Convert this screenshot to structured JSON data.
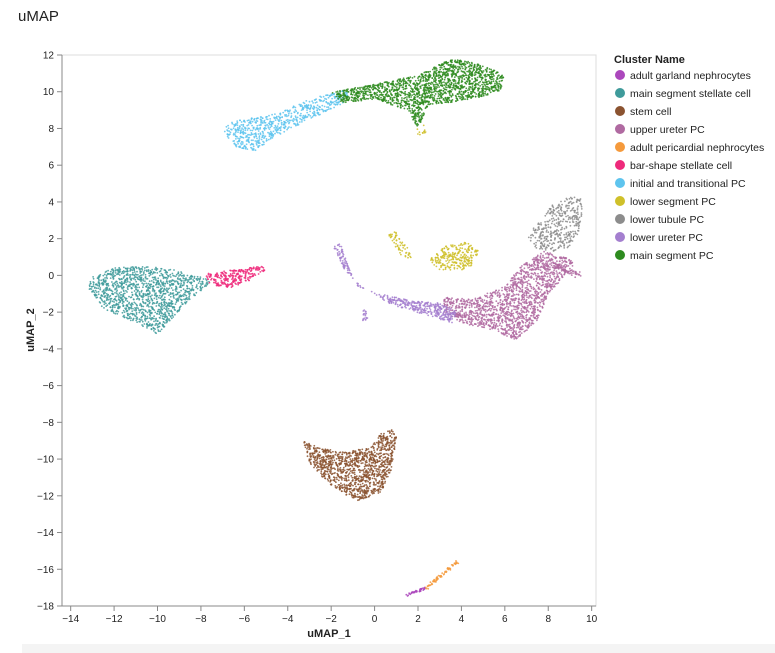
{
  "page": {
    "title": "uMAP"
  },
  "chart_data": {
    "type": "scatter",
    "title": "",
    "xlabel": "uMAP_1",
    "ylabel": "uMAP_2",
    "xlim": [
      -14.4,
      10.2
    ],
    "ylim": [
      -18,
      12
    ],
    "xticks": [
      -14,
      -12,
      -10,
      -8,
      -6,
      -4,
      -2,
      0,
      2,
      4,
      6,
      8,
      10
    ],
    "yticks": [
      -18,
      -16,
      -14,
      -12,
      -10,
      -8,
      -6,
      -4,
      -2,
      0,
      2,
      4,
      6,
      8,
      10,
      12
    ],
    "xtick_labels": [
      "−14",
      "−12",
      "−10",
      "−8",
      "−6",
      "−4",
      "−2",
      "0",
      "2",
      "4",
      "6",
      "8",
      "10"
    ],
    "ytick_labels": [
      "−18",
      "−16",
      "−14",
      "−12",
      "−10",
      "−8",
      "−6",
      "−4",
      "−2",
      "0",
      "2",
      "4",
      "6",
      "8",
      "10",
      "12"
    ],
    "grid": false,
    "legend": {
      "title": "Cluster Name",
      "placement": "right"
    },
    "series": [
      {
        "name": "adult garland nephrocytes",
        "color": "#ab47bc",
        "clusters": [
          {
            "shape": "segment",
            "from": [
              1.5,
              -17.4
            ],
            "to": [
              2.4,
              -17.0
            ],
            "width": 0.12,
            "n": 40
          }
        ]
      },
      {
        "name": "main segment stellate cell",
        "color": "#3f9b9b",
        "clusters": [
          {
            "shape": "polygon",
            "n": 1300,
            "points": [
              [
                -13.2,
                -0.7
              ],
              [
                -13.0,
                0.0
              ],
              [
                -12.0,
                0.4
              ],
              [
                -11.0,
                0.5
              ],
              [
                -9.5,
                0.4
              ],
              [
                -8.0,
                0.0
              ],
              [
                -7.5,
                -0.4
              ],
              [
                -8.5,
                -1.3
              ],
              [
                -9.6,
                -2.7
              ],
              [
                -10.0,
                -3.2
              ],
              [
                -10.8,
                -2.7
              ],
              [
                -12.5,
                -1.8
              ]
            ]
          }
        ]
      },
      {
        "name": "stem cell",
        "color": "#8b5330",
        "clusters": [
          {
            "shape": "polygon",
            "n": 1200,
            "points": [
              [
                -3.3,
                -9.0
              ],
              [
                -2.5,
                -9.4
              ],
              [
                -1.5,
                -9.6
              ],
              [
                -0.2,
                -9.4
              ],
              [
                0.3,
                -8.6
              ],
              [
                0.8,
                -8.4
              ],
              [
                1.0,
                -8.8
              ],
              [
                0.8,
                -10.5
              ],
              [
                0.3,
                -11.8
              ],
              [
                -0.8,
                -12.3
              ],
              [
                -2.0,
                -11.5
              ],
              [
                -3.0,
                -10.2
              ]
            ]
          }
        ]
      },
      {
        "name": "upper ureter PC",
        "color": "#b06aa1",
        "clusters": [
          {
            "shape": "polygon",
            "n": 1500,
            "points": [
              [
                3.2,
                -1.2
              ],
              [
                4.5,
                -1.3
              ],
              [
                6.0,
                -0.6
              ],
              [
                6.8,
                0.6
              ],
              [
                7.8,
                1.3
              ],
              [
                8.8,
                1.0
              ],
              [
                9.3,
                0.6
              ],
              [
                8.8,
                0.0
              ],
              [
                8.0,
                -1.0
              ],
              [
                7.5,
                -2.5
              ],
              [
                6.5,
                -3.5
              ],
              [
                5.5,
                -3.0
              ],
              [
                4.0,
                -2.6
              ],
              [
                3.2,
                -2.0
              ]
            ]
          },
          {
            "shape": "segment",
            "from": [
              8.3,
              0.6
            ],
            "to": [
              9.4,
              0.0
            ],
            "width": 0.3,
            "n": 60
          }
        ]
      },
      {
        "name": "adult pericardial nephrocytes",
        "color": "#f59a3c",
        "clusters": [
          {
            "shape": "segment",
            "from": [
              2.4,
              -17.0
            ],
            "to": [
              3.8,
              -15.6
            ],
            "width": 0.15,
            "n": 70
          }
        ]
      },
      {
        "name": "bar-shape stellate cell",
        "color": "#ee2a7b",
        "clusters": [
          {
            "shape": "polygon",
            "n": 250,
            "points": [
              [
                -7.8,
                0.1
              ],
              [
                -6.5,
                0.3
              ],
              [
                -5.2,
                0.5
              ],
              [
                -5.0,
                0.3
              ],
              [
                -5.8,
                -0.3
              ],
              [
                -6.5,
                -0.7
              ],
              [
                -7.6,
                -0.5
              ]
            ]
          }
        ]
      },
      {
        "name": "initial and transitional PC",
        "color": "#5ec4ee",
        "clusters": [
          {
            "shape": "polygon",
            "n": 650,
            "points": [
              [
                -7.0,
                8.0
              ],
              [
                -6.5,
                8.4
              ],
              [
                -4.5,
                8.8
              ],
              [
                -3.0,
                9.6
              ],
              [
                -1.0,
                10.2
              ],
              [
                -1.5,
                9.3
              ],
              [
                -3.0,
                8.5
              ],
              [
                -4.5,
                7.6
              ],
              [
                -5.5,
                6.8
              ],
              [
                -6.5,
                7.0
              ]
            ]
          }
        ]
      },
      {
        "name": "lower segment PC",
        "color": "#cfc02a",
        "clusters": [
          {
            "shape": "polygon",
            "n": 260,
            "points": [
              [
                2.5,
                0.8
              ],
              [
                3.2,
                1.6
              ],
              [
                4.2,
                1.8
              ],
              [
                4.8,
                1.4
              ],
              [
                4.6,
                0.6
              ],
              [
                4.0,
                0.3
              ],
              [
                3.0,
                0.3
              ]
            ]
          },
          {
            "shape": "polygon",
            "n": 60,
            "points": [
              [
                0.6,
                2.2
              ],
              [
                1.0,
                2.4
              ],
              [
                1.8,
                1.0
              ],
              [
                1.4,
                0.8
              ]
            ]
          },
          {
            "shape": "polygon",
            "n": 12,
            "points": [
              [
                1.9,
                8.0
              ],
              [
                2.3,
                8.2
              ],
              [
                2.4,
                7.7
              ],
              [
                2.0,
                7.6
              ]
            ]
          }
        ]
      },
      {
        "name": "lower tubule PC",
        "color": "#8c8c8c",
        "clusters": [
          {
            "shape": "polygon",
            "n": 380,
            "points": [
              [
                7.0,
                2.2
              ],
              [
                7.6,
                2.9
              ],
              [
                8.2,
                3.9
              ],
              [
                9.0,
                4.3
              ],
              [
                9.5,
                4.2
              ],
              [
                9.6,
                3.2
              ],
              [
                9.2,
                1.6
              ],
              [
                8.2,
                1.3
              ],
              [
                7.4,
                1.5
              ]
            ]
          }
        ]
      },
      {
        "name": "lower ureter PC",
        "color": "#a47fcf",
        "clusters": [
          {
            "shape": "polygon",
            "n": 420,
            "points": [
              [
                -1.9,
                1.6
              ],
              [
                -1.6,
                1.8
              ],
              [
                -1.3,
                0.8
              ],
              [
                -0.8,
                -0.6
              ],
              [
                0.2,
                -1.0
              ],
              [
                1.8,
                -1.4
              ],
              [
                3.0,
                -1.5
              ],
              [
                3.8,
                -2.0
              ],
              [
                3.6,
                -2.6
              ],
              [
                2.5,
                -2.2
              ],
              [
                0.8,
                -1.6
              ],
              [
                -0.6,
                -0.6
              ],
              [
                -1.4,
                0.3
              ]
            ]
          },
          {
            "shape": "polygon",
            "n": 20,
            "points": [
              [
                -0.6,
                -2.0
              ],
              [
                -0.4,
                -1.8
              ],
              [
                -0.3,
                -2.5
              ],
              [
                -0.6,
                -2.5
              ]
            ]
          }
        ]
      },
      {
        "name": "main segment PC",
        "color": "#2e8b1f",
        "clusters": [
          {
            "shape": "polygon",
            "n": 1700,
            "points": [
              [
                -2.0,
                10.0
              ],
              [
                0.0,
                10.4
              ],
              [
                2.0,
                10.9
              ],
              [
                3.5,
                11.8
              ],
              [
                4.5,
                11.6
              ],
              [
                5.5,
                11.2
              ],
              [
                6.0,
                10.8
              ],
              [
                5.8,
                10.0
              ],
              [
                4.8,
                9.7
              ],
              [
                3.5,
                9.4
              ],
              [
                2.5,
                9.3
              ],
              [
                2.0,
                8.0
              ],
              [
                1.5,
                9.0
              ],
              [
                0.0,
                9.6
              ],
              [
                -1.5,
                9.4
              ]
            ]
          }
        ]
      }
    ]
  }
}
